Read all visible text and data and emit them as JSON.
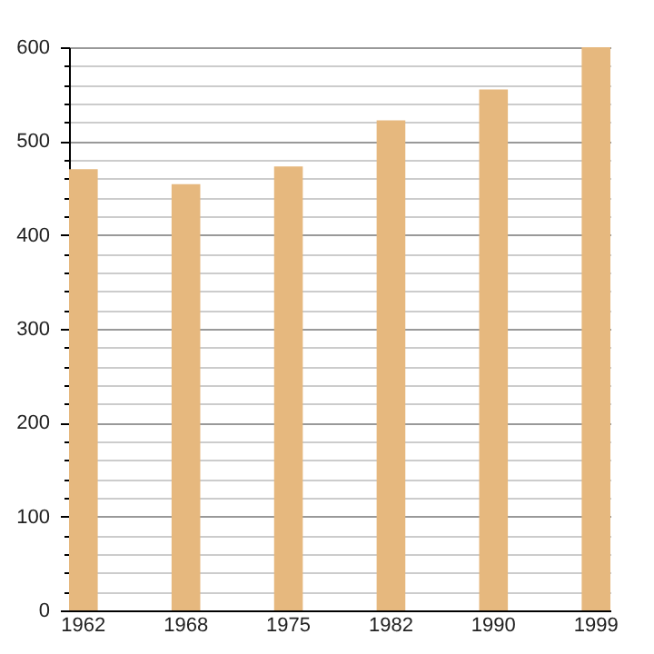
{
  "chart_data": {
    "type": "bar",
    "categories": [
      "1962",
      "1968",
      "1975",
      "1982",
      "1990",
      "1999"
    ],
    "values": [
      470,
      454,
      473,
      522,
      555,
      600
    ],
    "color": "#e6b87e",
    "ylim": [
      0,
      600
    ],
    "yticks": [
      0,
      {
        "value": 20,
        "label": null
      },
      {
        "value": 40,
        "label": null
      },
      {
        "value": 60,
        "label": null
      },
      {
        "value": 80,
        "label": null
      },
      100,
      {
        "value": 120,
        "label": null
      },
      {
        "value": 140,
        "label": null
      },
      {
        "value": 160,
        "label": null
      },
      {
        "value": 180,
        "label": null
      },
      200,
      {
        "value": 220,
        "label": null
      },
      {
        "value": 240,
        "label": null
      },
      {
        "value": 260,
        "label": null
      },
      {
        "value": 280,
        "label": null
      },
      300,
      {
        "value": 320,
        "label": null
      },
      {
        "value": 340,
        "label": null
      },
      {
        "value": 360,
        "label": null
      },
      {
        "value": 380,
        "label": null
      },
      400,
      {
        "value": 420,
        "label": null
      },
      {
        "value": 440,
        "label": null
      },
      {
        "value": 460,
        "label": null
      },
      {
        "value": 480,
        "label": null
      },
      500,
      {
        "value": 520,
        "label": null
      },
      {
        "value": 540,
        "label": null
      },
      {
        "value": 560,
        "label": null
      },
      {
        "value": 580,
        "label": null
      },
      600
    ],
    "grid": true
  }
}
